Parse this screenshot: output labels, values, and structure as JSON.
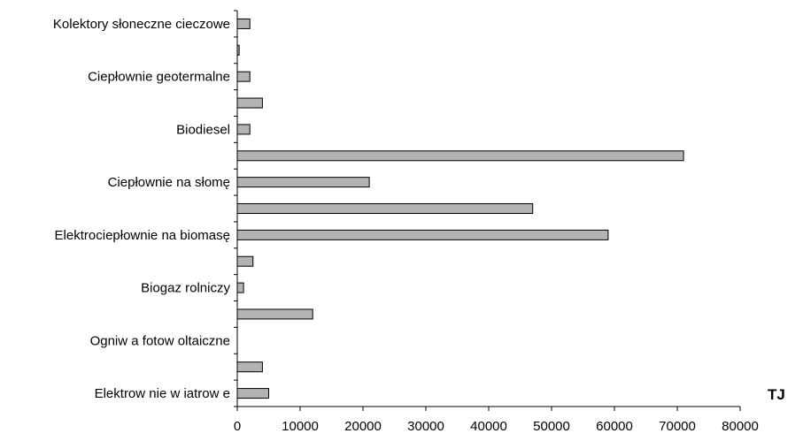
{
  "chart_data": {
    "type": "bar",
    "orientation": "horizontal",
    "title": "",
    "xlabel": "TJ",
    "ylabel": "",
    "xlim": [
      0,
      80000
    ],
    "x_ticks": [
      0,
      10000,
      20000,
      30000,
      40000,
      50000,
      60000,
      70000,
      80000
    ],
    "grid": false,
    "legend": "none",
    "categories": [
      "Kolektory słoneczne cieczowe",
      "",
      "Ciepłownie geotermalne",
      "",
      "Biodiesel",
      "",
      "Ciepłownie na słomę",
      "",
      "Elektrociepłownie na biomasę",
      "",
      "Biogaz rolniczy",
      "",
      "Ogniw a fotow oltaiczne",
      "",
      "Elektrow nie w iatrow e"
    ],
    "values": [
      2000,
      300,
      2000,
      4000,
      2000,
      71000,
      21000,
      47000,
      59000,
      2500,
      1000,
      12000,
      0,
      4000,
      5000
    ],
    "colors": {
      "bar_fill": "#b3b3b3",
      "bar_stroke": "#000000"
    }
  }
}
